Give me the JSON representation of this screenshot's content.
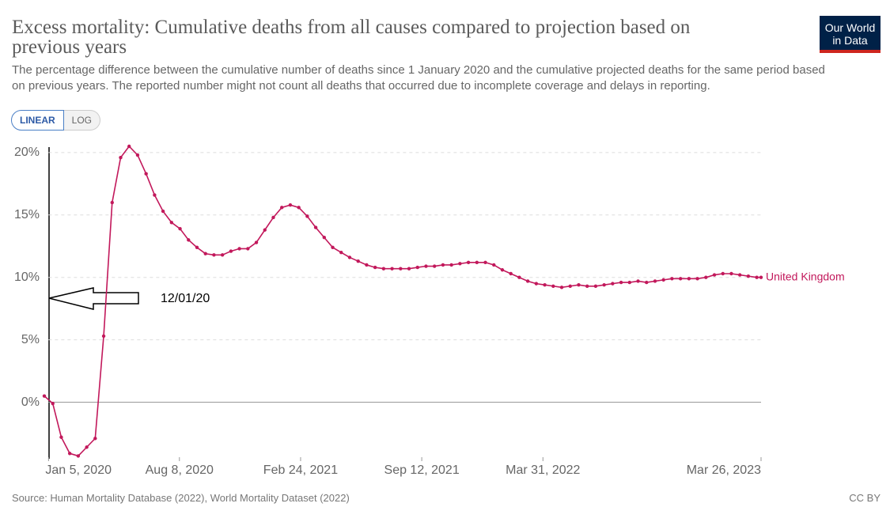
{
  "chart_data": {
    "type": "line",
    "title": "Excess mortality: Cumulative deaths from all causes compared to projection based on previous years",
    "subtitle": "The percentage difference between the cumulative number of deaths since 1 January 2020 and the cumulative projected deaths for the same period based on previous years. The reported number might not count all deaths that occurred due to incomplete coverage and delays in reporting.",
    "annotation": "12/01/20",
    "x": [
      "2019-12-29",
      "2020-01-12",
      "2020-01-26",
      "2020-02-09",
      "2020-02-23",
      "2020-03-08",
      "2020-03-22",
      "2020-04-05",
      "2020-04-19",
      "2020-05-03",
      "2020-05-17",
      "2020-05-31",
      "2020-06-14",
      "2020-06-28",
      "2020-07-12",
      "2020-07-26",
      "2020-08-09",
      "2020-08-23",
      "2020-09-06",
      "2020-09-20",
      "2020-10-04",
      "2020-10-18",
      "2020-11-01",
      "2020-11-15",
      "2020-11-29",
      "2020-12-13",
      "2020-12-27",
      "2021-01-10",
      "2021-01-24",
      "2021-02-07",
      "2021-02-21",
      "2021-03-07",
      "2021-03-21",
      "2021-04-04",
      "2021-04-18",
      "2021-05-02",
      "2021-05-16",
      "2021-05-30",
      "2021-06-13",
      "2021-06-27",
      "2021-07-11",
      "2021-07-25",
      "2021-08-08",
      "2021-08-22",
      "2021-09-05",
      "2021-09-19",
      "2021-10-03",
      "2021-10-17",
      "2021-10-31",
      "2021-11-14",
      "2021-11-28",
      "2021-12-12",
      "2021-12-26",
      "2022-01-09",
      "2022-01-23",
      "2022-02-06",
      "2022-02-20",
      "2022-03-06",
      "2022-03-20",
      "2022-04-03",
      "2022-04-17",
      "2022-05-01",
      "2022-05-15",
      "2022-05-29",
      "2022-06-12",
      "2022-06-26",
      "2022-07-10",
      "2022-07-24",
      "2022-08-07",
      "2022-08-21",
      "2022-09-04",
      "2022-09-18",
      "2022-10-02",
      "2022-10-16",
      "2022-10-30",
      "2022-11-13",
      "2022-11-27",
      "2022-12-11",
      "2022-12-25",
      "2023-01-08",
      "2023-01-22",
      "2023-02-05",
      "2023-02-19",
      "2023-03-05",
      "2023-03-19",
      "2023-03-26"
    ],
    "series": [
      {
        "name": "United Kingdom",
        "color": "#c2185b",
        "values": [
          0.5,
          -0.1,
          -2.8,
          -4.1,
          -4.3,
          -3.6,
          -2.9,
          5.3,
          16.0,
          19.6,
          20.5,
          19.8,
          18.3,
          16.6,
          15.3,
          14.4,
          13.9,
          13.0,
          12.4,
          11.9,
          11.8,
          11.8,
          12.1,
          12.3,
          12.3,
          12.8,
          13.8,
          14.8,
          15.6,
          15.8,
          15.6,
          14.9,
          14.0,
          13.2,
          12.4,
          12.0,
          11.6,
          11.3,
          11.0,
          10.8,
          10.7,
          10.7,
          10.7,
          10.7,
          10.8,
          10.9,
          10.9,
          11.0,
          11.0,
          11.1,
          11.2,
          11.2,
          11.2,
          11.0,
          10.6,
          10.3,
          10.0,
          9.7,
          9.5,
          9.4,
          9.3,
          9.2,
          9.3,
          9.4,
          9.3,
          9.3,
          9.4,
          9.5,
          9.6,
          9.6,
          9.7,
          9.6,
          9.7,
          9.8,
          9.9,
          9.9,
          9.9,
          9.9,
          10.0,
          10.2,
          10.3,
          10.3,
          10.2,
          10.1,
          10.0,
          10.0
        ]
      }
    ],
    "xlim": [
      "2019-12-29",
      "2023-03-26"
    ],
    "xticks": [
      {
        "value": "2020-01-05",
        "label": "Jan 5, 2020"
      },
      {
        "value": "2020-08-08",
        "label": "Aug 8, 2020"
      },
      {
        "value": "2021-02-24",
        "label": "Feb 24, 2021"
      },
      {
        "value": "2021-09-12",
        "label": "Sep 12, 2021"
      },
      {
        "value": "2022-03-31",
        "label": "Mar 31, 2022"
      },
      {
        "value": "2023-03-26",
        "label": "Mar 26, 2023"
      }
    ],
    "ylim": [
      -4.4,
      20.5
    ],
    "yticks": [
      {
        "value": 0,
        "label": "0%"
      },
      {
        "value": 5,
        "label": "5%"
      },
      {
        "value": 10,
        "label": "10%"
      },
      {
        "value": 15,
        "label": "15%"
      },
      {
        "value": 20,
        "label": "20%"
      }
    ],
    "grid": true
  },
  "controls": [
    "LINEAR",
    "LOG"
  ],
  "logo": [
    "Our World",
    "in Data"
  ],
  "footer": {
    "source": "Source: Human Mortality Database (2022), World Mortality Dataset (2022)",
    "license": "CC BY"
  }
}
